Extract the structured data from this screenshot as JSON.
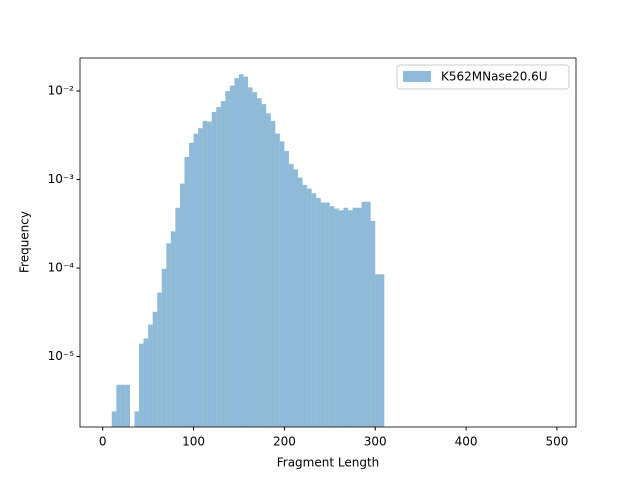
{
  "chart_data": {
    "type": "histogram",
    "xlabel": "Fragment Length",
    "ylabel": "Frequency",
    "bins": [
      10,
      15,
      20,
      25,
      30,
      35,
      40,
      45,
      50,
      55,
      60,
      65,
      70,
      75,
      80,
      85,
      90,
      95,
      100,
      105,
      110,
      115,
      120,
      125,
      130,
      135,
      140,
      145,
      150,
      155,
      160,
      165,
      170,
      175,
      180,
      185,
      190,
      195,
      200,
      205,
      210,
      215,
      220,
      225,
      230,
      235,
      240,
      245,
      250,
      255,
      260,
      265,
      270,
      275,
      280,
      285,
      290,
      295,
      300,
      305,
      310
    ],
    "series": [
      {
        "name": "K562MNase20.6U",
        "color": "#1f77b4",
        "values": [
          2.4e-06,
          4.8e-06,
          4.8e-06,
          4.8e-06,
          0,
          2.4e-06,
          1.4e-05,
          1.6e-05,
          2.3e-05,
          3.2e-05,
          5.3e-05,
          9.8e-05,
          0.00019,
          0.00026,
          0.00048,
          0.0009,
          0.0018,
          0.0026,
          0.0033,
          0.0038,
          0.0046,
          0.0045,
          0.0058,
          0.0066,
          0.0077,
          0.01,
          0.0115,
          0.014,
          0.0155,
          0.0145,
          0.011,
          0.0097,
          0.0083,
          0.0071,
          0.0056,
          0.0046,
          0.0033,
          0.0027,
          0.0021,
          0.0015,
          0.0013,
          0.00105,
          0.00087,
          0.00079,
          0.0007,
          0.00062,
          0.00055,
          0.00055,
          0.0005,
          0.00047,
          0.00045,
          0.00048,
          0.00045,
          0.00048,
          0.00048,
          0.00056,
          0.00056,
          0.00034,
          8.5e-05,
          8.5e-05
        ]
      }
    ],
    "xlim": [
      -25,
      521
    ],
    "xticks": [
      0,
      100,
      200,
      300,
      400,
      500
    ],
    "ylim": [
      1.6e-06,
      0.0236
    ],
    "ylog": true,
    "yticks": [
      {
        "value": 1e-05,
        "label": "10⁻⁵"
      },
      {
        "value": 0.0001,
        "label": "10⁻⁴"
      },
      {
        "value": 0.001,
        "label": "10⁻³"
      },
      {
        "value": 0.01,
        "label": "10⁻²"
      }
    ],
    "legend": "upper right"
  }
}
